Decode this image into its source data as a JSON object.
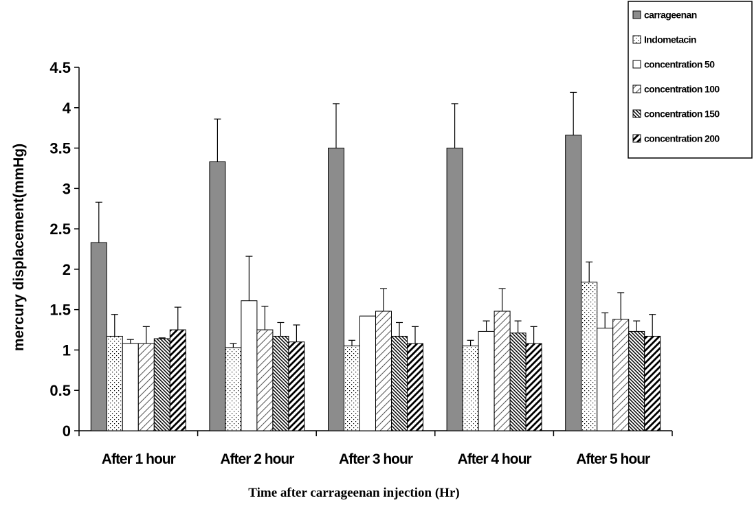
{
  "chart_data": {
    "type": "bar",
    "title": "",
    "xlabel": "Time after carrageenan injection (Hr)",
    "ylabel": "mercury displacement(mmHg)",
    "ylim": [
      0,
      4.5
    ],
    "yticks": [
      "0",
      "0.5",
      "1",
      "1.5",
      "2",
      "2.5",
      "3",
      "3.5",
      "4",
      "4.5"
    ],
    "categories": [
      "After 1 hour",
      "After 2 hour",
      "After 3 hour",
      "After 4 hour",
      "After 5 hour"
    ],
    "grid": false,
    "legend_position": "top-right",
    "series": [
      {
        "name": "carrageenan",
        "color": "#8c8c8c",
        "pattern": "solid",
        "values": [
          2.33,
          3.33,
          3.5,
          3.5,
          3.66
        ],
        "errors": [
          0.5,
          0.53,
          0.55,
          0.55,
          0.53
        ]
      },
      {
        "name": "Indometacin",
        "color": "#ffffff",
        "pattern": "dots",
        "values": [
          1.17,
          1.03,
          1.05,
          1.05,
          1.84
        ],
        "errors": [
          0.27,
          0.05,
          0.07,
          0.07,
          0.25
        ]
      },
      {
        "name": "concentration 50",
        "color": "#ffffff",
        "pattern": "none",
        "values": [
          1.08,
          1.61,
          1.42,
          1.23,
          1.27
        ],
        "errors": [
          0.05,
          0.55,
          0.0,
          0.13,
          0.19
        ]
      },
      {
        "name": "concentration 100",
        "color": "#ffffff",
        "pattern": "light-diagonal",
        "values": [
          1.08,
          1.25,
          1.48,
          1.48,
          1.38
        ],
        "errors": [
          0.21,
          0.29,
          0.28,
          0.28,
          0.33
        ]
      },
      {
        "name": "concentration 150",
        "color": "#ffffff",
        "pattern": "dense-backslash",
        "values": [
          1.14,
          1.17,
          1.17,
          1.21,
          1.23
        ],
        "errors": [
          0.01,
          0.17,
          0.17,
          0.15,
          0.13
        ]
      },
      {
        "name": "concentration 200",
        "color": "#ffffff",
        "pattern": "thick-diagonal",
        "values": [
          1.25,
          1.1,
          1.08,
          1.08,
          1.17
        ],
        "errors": [
          0.28,
          0.21,
          0.21,
          0.21,
          0.27
        ]
      }
    ]
  }
}
